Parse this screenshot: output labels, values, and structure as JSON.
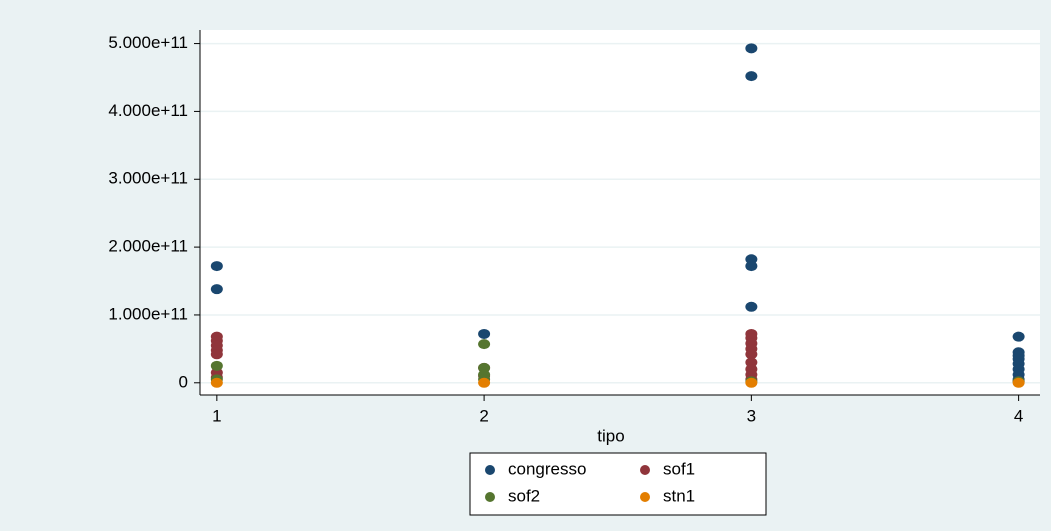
{
  "chart_data": {
    "type": "scatter",
    "xlabel": "tipo",
    "xlim": [
      0.937,
      4.08
    ],
    "xticks": [
      1,
      2,
      3,
      4
    ],
    "ylim": [
      -18000000000,
      520000000000
    ],
    "yticks": [
      0,
      {
        "value": 100000000000,
        "label": "1.000e+11"
      },
      {
        "value": 200000000000,
        "label": "2.000e+11"
      },
      {
        "value": 300000000000,
        "label": "3.000e+11"
      },
      {
        "value": 400000000000,
        "label": "4.000e+11"
      },
      {
        "value": 500000000000,
        "label": "5.000e+11"
      }
    ],
    "grid": true,
    "legend": "bottom",
    "series": [
      {
        "name": "congresso",
        "color": "#1a476f",
        "x": [
          1,
          1,
          2,
          3,
          3,
          3,
          3,
          3,
          4,
          4,
          4,
          4,
          4,
          4,
          4,
          4
        ],
        "values": [
          172000000000,
          138000000000,
          72000000000,
          493000000000,
          452000000000,
          182000000000,
          172000000000,
          112000000000,
          68000000000,
          45000000000,
          40000000000,
          35000000000,
          28000000000,
          20000000000,
          12000000000,
          5000000000
        ]
      },
      {
        "name": "sof1",
        "color": "#90353b",
        "x": [
          1,
          1,
          1,
          1,
          1,
          1,
          1,
          2,
          2,
          3,
          3,
          3,
          3,
          3,
          3,
          3,
          3,
          3,
          4
        ],
        "values": [
          68000000000,
          62000000000,
          55000000000,
          48000000000,
          42000000000,
          15000000000,
          8000000000,
          22000000000,
          10000000000,
          72000000000,
          66000000000,
          58000000000,
          50000000000,
          42000000000,
          30000000000,
          20000000000,
          12000000000,
          5000000000,
          2000000000
        ]
      },
      {
        "name": "sof2",
        "color": "#55752f",
        "x": [
          1,
          1,
          2,
          2,
          2,
          2,
          3,
          4
        ],
        "values": [
          25000000000,
          5000000000,
          57000000000,
          22000000000,
          12000000000,
          5000000000,
          2000000000,
          2000000000
        ]
      },
      {
        "name": "stn1",
        "color": "#e37e00",
        "x": [
          1,
          2,
          3,
          4
        ],
        "values": [
          0,
          0,
          0,
          0
        ]
      }
    ]
  }
}
